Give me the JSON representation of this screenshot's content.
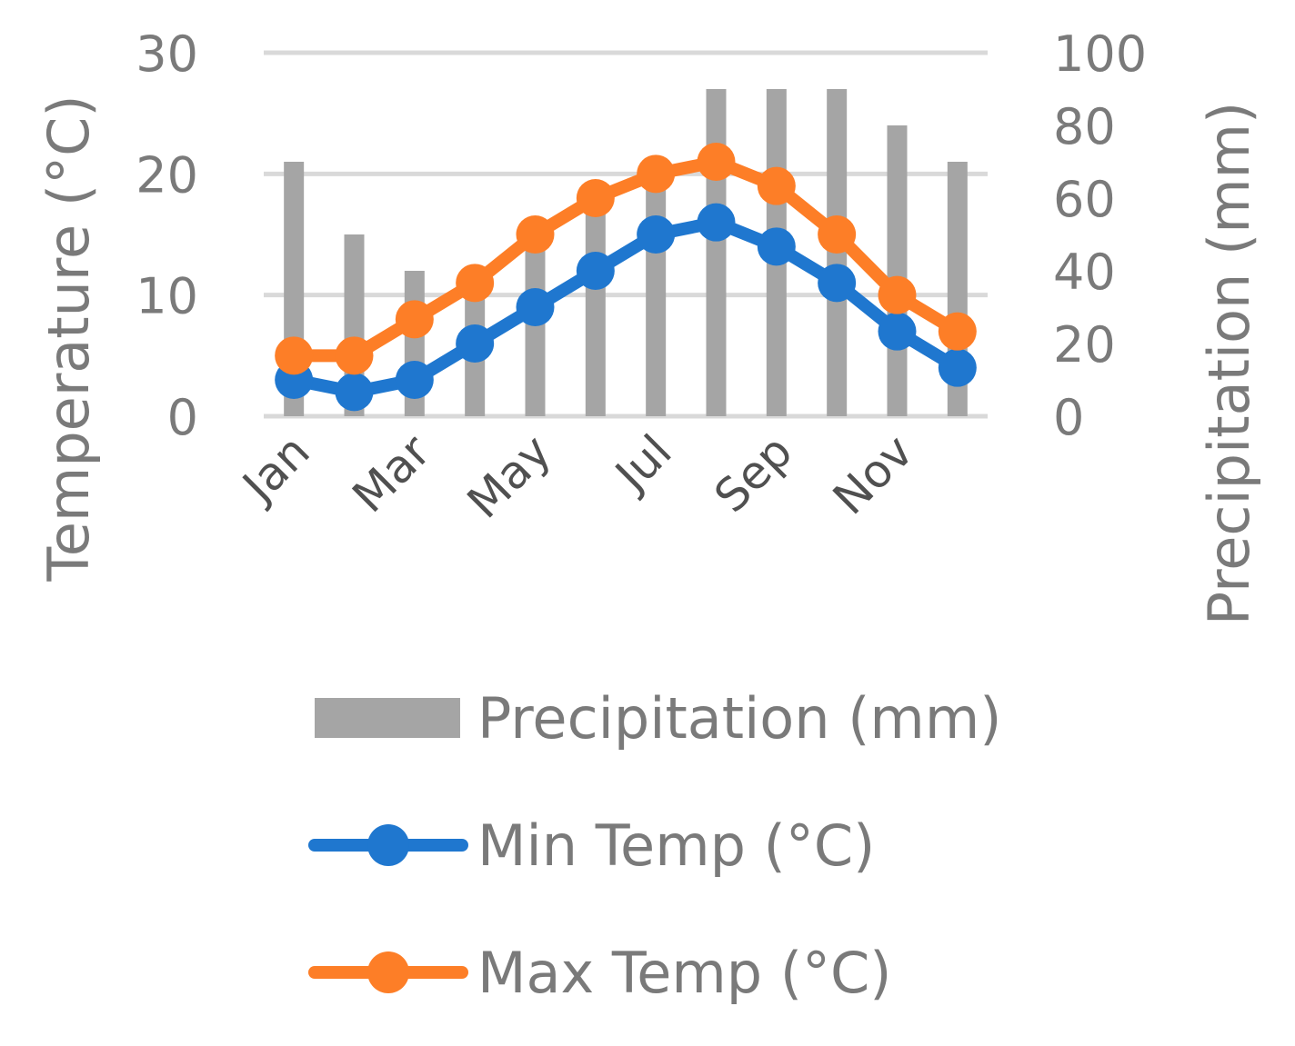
{
  "chart_data": {
    "type": "bar",
    "title": "",
    "categories": [
      "Jan",
      "Feb",
      "Mar",
      "Apr",
      "May",
      "Jun",
      "Jul",
      "Aug",
      "Sep",
      "Oct",
      "Nov",
      "Dec"
    ],
    "x_tick_labels": [
      "Jan",
      "Mar",
      "May",
      "Jul",
      "Sep",
      "Nov"
    ],
    "series": [
      {
        "name": "Precipitation (mm)",
        "type": "bar",
        "axis": "right",
        "color": "#a5a5a5",
        "values": [
          70,
          50,
          40,
          35,
          47,
          57,
          63,
          90,
          90,
          90,
          80,
          70
        ]
      },
      {
        "name": "Min Temp (°C)",
        "type": "line",
        "axis": "left",
        "color": "#1f77cf",
        "marker": "circle",
        "values": [
          3,
          2,
          3,
          6,
          9,
          12,
          15,
          16,
          14,
          11,
          7,
          4
        ]
      },
      {
        "name": "Max Temp (°C)",
        "type": "line",
        "axis": "left",
        "color": "#fd7e27",
        "marker": "circle",
        "values": [
          5,
          5,
          8,
          11,
          15,
          18,
          20,
          21,
          19,
          15,
          10,
          7
        ]
      }
    ],
    "y_left": {
      "label": "Temperature (°C)",
      "min": 0,
      "max": 30,
      "ticks": [
        0,
        10,
        20,
        30
      ]
    },
    "y_right": {
      "label": "Precipitation (mm)",
      "min": 0,
      "max": 100,
      "ticks": [
        0,
        20,
        40,
        60,
        80,
        100
      ]
    },
    "grid": true,
    "gridline_color": "#d9d9d9",
    "legend_position": "bottom"
  }
}
